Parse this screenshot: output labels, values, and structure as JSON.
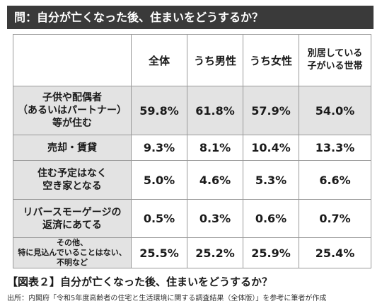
{
  "question": "問：自分が亡くなった後、住まいをどうするか？",
  "columns": [
    "全体",
    "うち男性",
    "うち女性",
    "別居している\n子がいる世帯"
  ],
  "rows": [
    {
      "label": "子供や配偶者\n（あるいはパートナー）\n等が住む",
      "values": [
        "59.8%",
        "61.8%",
        "57.9%",
        "54.0%"
      ]
    },
    {
      "label": "売却・賃貸",
      "values": [
        "9.3%",
        "8.1%",
        "10.4%",
        "13.3%"
      ]
    },
    {
      "label": "住む予定はなく\n空き家となる",
      "values": [
        "5.0%",
        "4.6%",
        "5.3%",
        "6.6%"
      ]
    },
    {
      "label": "リバースモーゲージの\n返済にあてる",
      "values": [
        "0.5%",
        "0.3%",
        "0.6%",
        "0.7%"
      ]
    },
    {
      "label": "その他、\n特に見込んでいることはない、\n不明など",
      "values": [
        "25.5%",
        "25.2%",
        "25.9%",
        "25.4%"
      ]
    }
  ],
  "caption": "【図表２】自分が亡くなった後、住まいをどうするか？",
  "source": "出所：内閣府「令和5年度高齢者の住宅と生活環境に関する調査結果（全体版）」を参考に筆者が作成",
  "colors": {
    "header_bar": "#3a3a3a",
    "row_shade": "#e3e3e3",
    "border": "#999999"
  }
}
